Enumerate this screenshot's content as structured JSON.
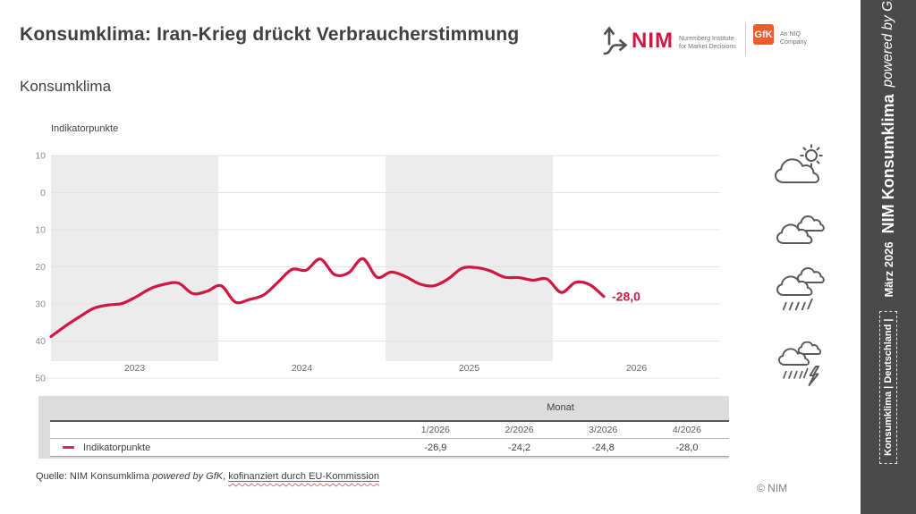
{
  "header": {
    "title": "Konsumklima: Iran-Krieg drückt Verbraucherstimmung",
    "subtitle": "Konsumklima"
  },
  "logos": {
    "nim": {
      "wordmark": "NIM",
      "tagline_line1": "Nuremberg Institute",
      "tagline_line2": "for Market Decisions"
    },
    "gfk": {
      "wordmark": "GfK",
      "tagline_line1": "An NIQ",
      "tagline_line2": "Company"
    }
  },
  "chart_data": {
    "type": "line",
    "title": "Konsumklima",
    "ylabel": "Indikatorpunkte",
    "ylim": [
      -50,
      10
    ],
    "yticks": [
      10,
      0,
      -10,
      -20,
      -30,
      -40,
      -50
    ],
    "x_year_labels": [
      "2023",
      "2024",
      "2025",
      "2026"
    ],
    "shaded_year_bands": [
      "2023",
      "2025"
    ],
    "band_color": "#ececec",
    "gridline_color": "#e3e3e3",
    "legend_position": "table-below",
    "series": [
      {
        "name": "Indikatorpunkte",
        "color": "#d01742",
        "x_months": [
          "1/2023",
          "2/2023",
          "3/2023",
          "4/2023",
          "5/2023",
          "6/2023",
          "7/2023",
          "8/2023",
          "9/2023",
          "10/2023",
          "11/2023",
          "12/2023",
          "1/2024",
          "2/2024",
          "3/2024",
          "4/2024",
          "5/2024",
          "6/2024",
          "7/2024",
          "8/2024",
          "9/2024",
          "10/2024",
          "11/2024",
          "12/2024",
          "1/2025",
          "2/2025",
          "3/2025",
          "4/2025",
          "5/2025",
          "6/2025",
          "7/2025",
          "8/2025",
          "9/2025",
          "10/2025",
          "11/2025",
          "12/2025",
          "1/2026",
          "2/2026",
          "3/2026",
          "4/2026"
        ],
        "values": [
          -38.8,
          -36.0,
          -33.5,
          -31.2,
          -30.3,
          -29.9,
          -28.1,
          -25.9,
          -24.7,
          -24.4,
          -27.2,
          -26.6,
          -25.1,
          -29.5,
          -28.8,
          -27.6,
          -24.2,
          -20.7,
          -20.9,
          -17.9,
          -22.1,
          -21.6,
          -17.8,
          -22.8,
          -21.4,
          -22.6,
          -24.6,
          -25.1,
          -23.3,
          -20.4,
          -20.2,
          -21.1,
          -22.8,
          -22.9,
          -23.6,
          -23.3,
          -26.9,
          -24.2,
          -24.8,
          -28.0
        ]
      }
    ],
    "end_label": "-28,0"
  },
  "weather_icons": [
    "sun-behind-cloud",
    "clouds",
    "rain-cloud",
    "storm-cloud"
  ],
  "table": {
    "group_header": "Monat",
    "columns": [
      "1/2026",
      "2/2026",
      "3/2026",
      "4/2026"
    ],
    "row": {
      "label": "Indikatorpunkte",
      "values": [
        "-26,9",
        "-24,2",
        "-24,8",
        "-28,0"
      ]
    }
  },
  "footer": {
    "source_prefix": "Quelle: NIM Konsumklima ",
    "source_italic": "powered by GfK",
    "source_separator": ", ",
    "source_link": "kofinanziert durch EU-Kommission",
    "copyright": "© NIM"
  },
  "sidebar": {
    "tag_box": "Konsumklima | Deutschland |",
    "edition": "März 2026",
    "brand_bold": "NIM Konsumklima",
    "brand_italic": "powered by GfK"
  },
  "colors": {
    "accent_red": "#d01742",
    "gfk_orange": "#ef5b2a",
    "sidebar_gray": "#4a4a4a",
    "band_gray": "#ececec"
  }
}
